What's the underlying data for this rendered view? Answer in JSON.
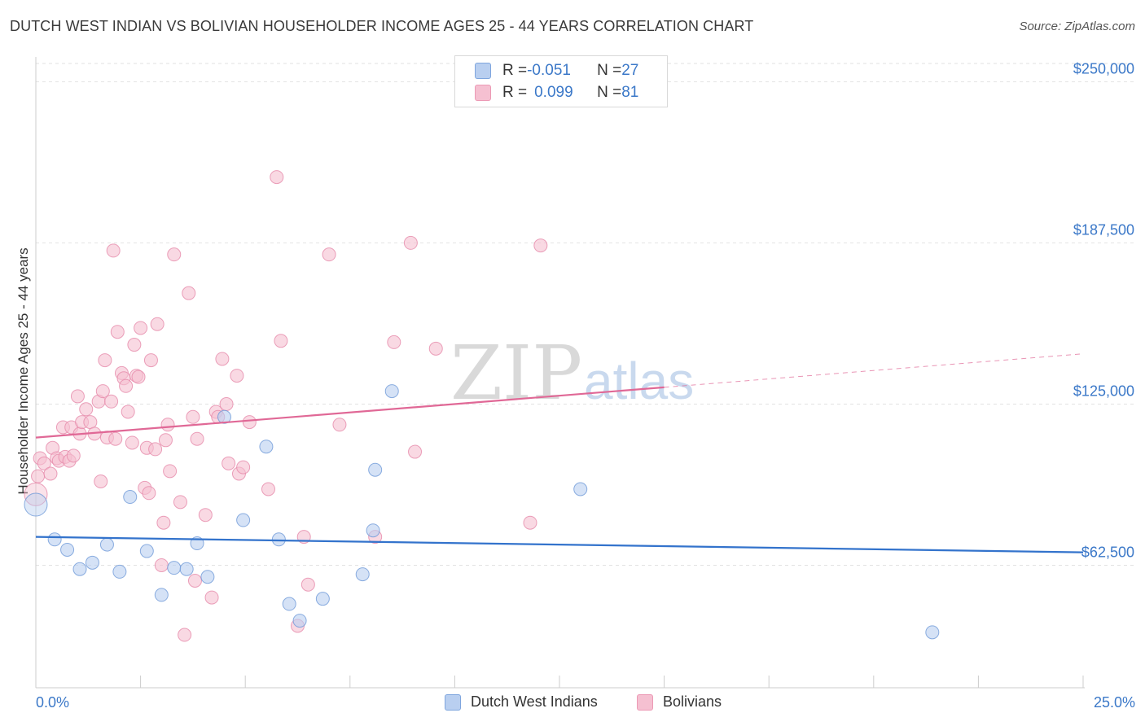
{
  "title": "DUTCH WEST INDIAN VS BOLIVIAN HOUSEHOLDER INCOME AGES 25 - 44 YEARS CORRELATION CHART",
  "source": "Source: ZipAtlas.com",
  "watermark": {
    "zip": "ZIP",
    "atlas": "atlas"
  },
  "colors": {
    "blue": "#3373cc",
    "blue_fill": "#b9cff0",
    "pink": "#e06896",
    "pink_fill": "#f5c0d1",
    "axis_text": "#3b78c8",
    "grid": "#e2e2e2"
  },
  "legend": {
    "rows": [
      {
        "r_label": "R = ",
        "r_value": "-0.051",
        "n_label": "N = ",
        "n_value": "27"
      },
      {
        "r_label": "R = ",
        "r_value": "0.099",
        "n_label": "N = ",
        "n_value": "81"
      }
    ]
  },
  "bottom_legend": [
    "Dutch West Indians",
    "Bolivians"
  ],
  "chart_data": {
    "type": "scatter",
    "title": "DUTCH WEST INDIAN VS BOLIVIAN HOUSEHOLDER INCOME AGES 25 - 44 YEARS CORRELATION CHART",
    "xlabel": "",
    "ylabel": "Householder Income Ages 25 - 44 years",
    "xlim": [
      0,
      25
    ],
    "ylim": [
      15000,
      258000
    ],
    "x_tick_labels": [
      "0.0%",
      "25.0%"
    ],
    "y_ticks": [
      62500,
      125000,
      187500,
      250000
    ],
    "y_tick_labels": [
      "$62,500",
      "$125,000",
      "$187,500",
      "$250,000"
    ],
    "grid": true,
    "legend_position": "top-center",
    "series": [
      {
        "name": "Dutch West Indians",
        "r": -0.051,
        "n": 27,
        "trend": {
          "x": [
            0,
            25
          ],
          "y": [
            73500,
            67500
          ]
        },
        "points": [
          [
            0.0,
            86000
          ],
          [
            0.45,
            72500
          ],
          [
            0.75,
            68500
          ],
          [
            1.05,
            61000
          ],
          [
            1.35,
            63500
          ],
          [
            1.7,
            70500
          ],
          [
            2.0,
            60000
          ],
          [
            2.25,
            89000
          ],
          [
            2.65,
            68000
          ],
          [
            3.0,
            51000
          ],
          [
            3.3,
            61500
          ],
          [
            3.6,
            61000
          ],
          [
            3.85,
            71000
          ],
          [
            4.1,
            58000
          ],
          [
            4.5,
            120000
          ],
          [
            4.95,
            80000
          ],
          [
            5.5,
            108500
          ],
          [
            5.8,
            72500
          ],
          [
            6.05,
            47500
          ],
          [
            6.3,
            41000
          ],
          [
            6.85,
            49500
          ],
          [
            7.8,
            59000
          ],
          [
            8.05,
            76000
          ],
          [
            8.1,
            99500
          ],
          [
            8.5,
            130000
          ],
          [
            13.0,
            92000
          ],
          [
            21.4,
            36500
          ]
        ]
      },
      {
        "name": "Bolivians",
        "r": 0.099,
        "n": 81,
        "trend": {
          "x": [
            0,
            15
          ],
          "y": [
            112000,
            131500
          ]
        },
        "trend_extension": {
          "x": [
            15,
            25
          ],
          "y": [
            131500,
            144500
          ]
        },
        "points": [
          [
            0.0,
            90000
          ],
          [
            0.05,
            97000
          ],
          [
            0.1,
            104000
          ],
          [
            0.2,
            102000
          ],
          [
            0.35,
            98000
          ],
          [
            0.4,
            108000
          ],
          [
            0.5,
            104000
          ],
          [
            0.55,
            103000
          ],
          [
            0.65,
            116000
          ],
          [
            0.7,
            104500
          ],
          [
            0.8,
            103000
          ],
          [
            0.85,
            116000
          ],
          [
            0.9,
            105000
          ],
          [
            1.0,
            128000
          ],
          [
            1.05,
            113500
          ],
          [
            1.1,
            118000
          ],
          [
            1.2,
            123000
          ],
          [
            1.3,
            118000
          ],
          [
            1.4,
            113500
          ],
          [
            1.5,
            126000
          ],
          [
            1.55,
            95000
          ],
          [
            1.6,
            130000
          ],
          [
            1.65,
            142000
          ],
          [
            1.7,
            112000
          ],
          [
            1.8,
            126000
          ],
          [
            1.85,
            184500
          ],
          [
            1.9,
            111500
          ],
          [
            1.95,
            153000
          ],
          [
            2.05,
            137000
          ],
          [
            2.1,
            135000
          ],
          [
            2.15,
            132000
          ],
          [
            2.2,
            122000
          ],
          [
            2.3,
            110000
          ],
          [
            2.35,
            148000
          ],
          [
            2.4,
            136000
          ],
          [
            2.45,
            135500
          ],
          [
            2.5,
            154500
          ],
          [
            2.6,
            92500
          ],
          [
            2.65,
            108000
          ],
          [
            2.7,
            90500
          ],
          [
            2.75,
            142000
          ],
          [
            2.85,
            107500
          ],
          [
            2.9,
            156000
          ],
          [
            3.0,
            62500
          ],
          [
            3.05,
            79000
          ],
          [
            3.1,
            111000
          ],
          [
            3.15,
            117000
          ],
          [
            3.2,
            99000
          ],
          [
            3.3,
            183000
          ],
          [
            3.45,
            87000
          ],
          [
            3.55,
            35500
          ],
          [
            3.65,
            168000
          ],
          [
            3.75,
            120000
          ],
          [
            3.8,
            56500
          ],
          [
            3.85,
            111500
          ],
          [
            4.05,
            82000
          ],
          [
            4.2,
            50000
          ],
          [
            4.3,
            122000
          ],
          [
            4.35,
            120000
          ],
          [
            4.45,
            142500
          ],
          [
            4.55,
            125000
          ],
          [
            4.6,
            102000
          ],
          [
            4.8,
            136000
          ],
          [
            4.85,
            98000
          ],
          [
            4.95,
            100500
          ],
          [
            5.1,
            118000
          ],
          [
            5.55,
            92000
          ],
          [
            5.75,
            213000
          ],
          [
            5.85,
            149500
          ],
          [
            6.25,
            39000
          ],
          [
            6.4,
            73500
          ],
          [
            6.5,
            55000
          ],
          [
            7.0,
            183000
          ],
          [
            7.25,
            117000
          ],
          [
            8.1,
            73500
          ],
          [
            8.55,
            149000
          ],
          [
            8.95,
            187500
          ],
          [
            9.05,
            106500
          ],
          [
            9.55,
            146500
          ],
          [
            11.8,
            79000
          ],
          [
            12.05,
            186500
          ]
        ]
      }
    ]
  }
}
